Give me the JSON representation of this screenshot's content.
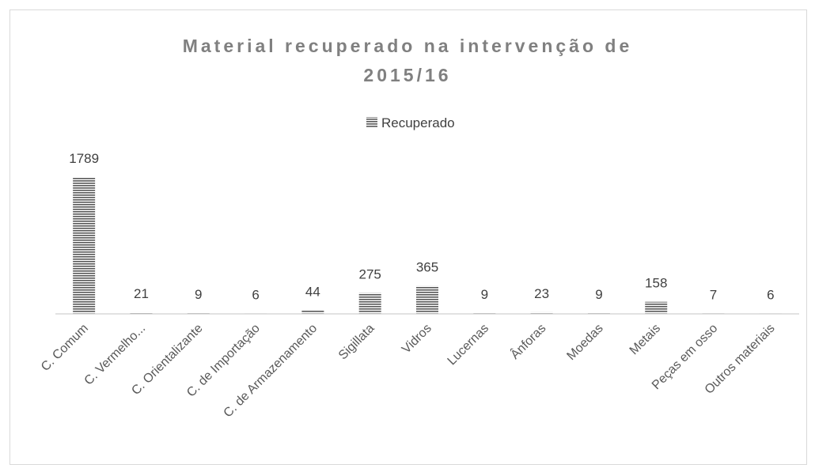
{
  "chart_data": {
    "type": "bar",
    "title": "Material recuperado na intervenção de 2015/16",
    "categories": [
      "C. Comum",
      "C. Vermelho...",
      "C. Orientalizante",
      "C. de Importação",
      "C. de Armazenamento",
      "Sigillata",
      "Vidros",
      "Lucernas",
      "Ânforas",
      "Moedas",
      "Metais",
      "Peças em osso",
      "Outros materiais"
    ],
    "series": [
      {
        "name": "Recuperado",
        "color": "#595959",
        "values": [
          1789,
          21,
          9,
          6,
          44,
          275,
          365,
          9,
          23,
          9,
          158,
          7,
          6
        ]
      }
    ]
  }
}
